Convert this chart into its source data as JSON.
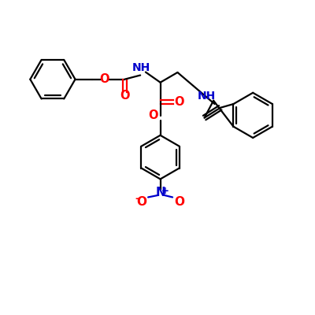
{
  "background_color": "#ffffff",
  "bond_color": "#000000",
  "oxygen_color": "#ff0000",
  "nitrogen_color": "#0000cc",
  "line_width": 1.6,
  "figsize": [
    4.0,
    4.0
  ],
  "dpi": 100,
  "xlim": [
    0,
    10
  ],
  "ylim": [
    0,
    10
  ]
}
